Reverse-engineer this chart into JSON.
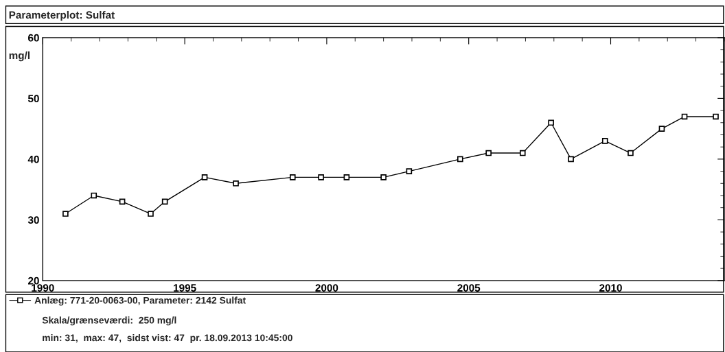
{
  "chart_data": {
    "type": "line",
    "title": "Parameterplot: Sulfat",
    "ylabel": "mg/l",
    "x": [
      1990.8,
      1991.8,
      1992.8,
      1993.8,
      1994.3,
      1995.7,
      1996.8,
      1998.8,
      1999.8,
      2000.7,
      2002.0,
      2002.9,
      2004.7,
      2005.7,
      2006.9,
      2007.9,
      2008.6,
      2009.8,
      2010.7,
      2011.8,
      2012.6,
      2013.7
    ],
    "series": [
      {
        "name": "Anlæg: 771-20-0063-00, Parameter: 2142 Sulfat",
        "color": "#000000",
        "values": [
          31,
          34,
          33,
          31,
          33,
          37,
          36,
          37,
          37,
          37,
          37,
          38,
          40,
          41,
          41,
          46,
          40,
          43,
          41,
          45,
          47,
          47
        ]
      }
    ],
    "annotations": [
      "Skala/grænseværdi:  250 mg/l",
      "min: 31,  max: 47,  sidst vist: 47  pr. 18.09.2013 10:45:00"
    ],
    "xlim": [
      1990,
      2014
    ],
    "xticks": [
      1990,
      1995,
      2000,
      2005,
      2010
    ],
    "ylim": [
      20,
      60
    ],
    "yticks": [
      20,
      30,
      40,
      50,
      60
    ],
    "marker": "square",
    "line_style": "solid",
    "legend": "bottom",
    "grid": false
  }
}
